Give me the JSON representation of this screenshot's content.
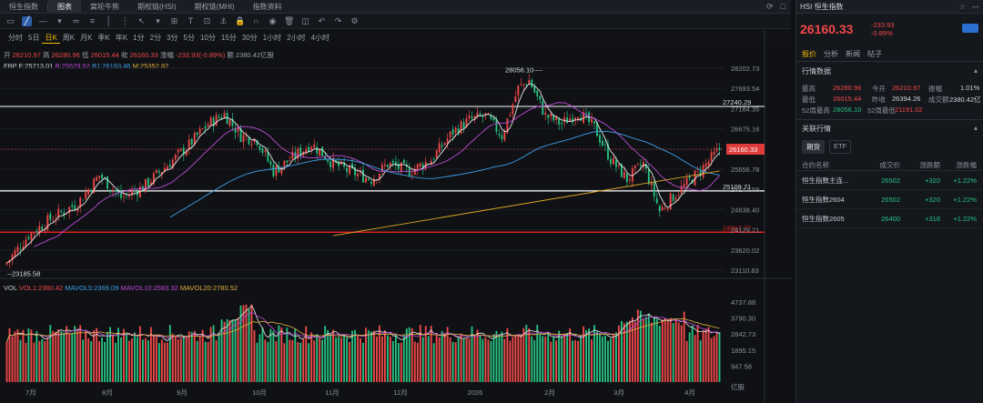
{
  "top_tabs": [
    {
      "label": "恒生指数",
      "active": false
    },
    {
      "label": "图表",
      "active": true
    },
    {
      "label": "窝轮牛熊",
      "active": false
    },
    {
      "label": "期权链(HSI)",
      "active": false
    },
    {
      "label": "期权链(MHI)",
      "active": false
    },
    {
      "label": "指数资料",
      "active": false
    }
  ],
  "periods": [
    {
      "label": "分时",
      "active": false
    },
    {
      "label": "5日",
      "active": false
    },
    {
      "label": "日K",
      "active": true
    },
    {
      "label": "周K",
      "active": false
    },
    {
      "label": "月K",
      "active": false
    },
    {
      "label": "季K",
      "active": false
    },
    {
      "label": "年K",
      "active": false
    },
    {
      "label": "1分",
      "active": false
    },
    {
      "label": "2分",
      "active": false
    },
    {
      "label": "3分",
      "active": false
    },
    {
      "label": "5分",
      "active": false
    },
    {
      "label": "10分",
      "active": false
    },
    {
      "label": "15分",
      "active": false
    },
    {
      "label": "30分",
      "active": false
    },
    {
      "label": "1小时",
      "active": false
    },
    {
      "label": "2小时",
      "active": false
    },
    {
      "label": "4小时",
      "active": false
    }
  ],
  "ohlc": {
    "open_label": "开",
    "open": "26210.97",
    "high_label": "高",
    "high": "26280.96",
    "low_label": "低",
    "low": "26015.44",
    "close_label": "收",
    "close": "26160.33",
    "chg_label": "涨幅",
    "chg": "-233.93(-0.89%)",
    "amount_label": "额",
    "amount": "2380.42亿股"
  },
  "bands": {
    "label": "FBP",
    "f": "F:25713.01",
    "b": "B:25529.52",
    "b1": "B1:26163.46",
    "m": "M:25352.82"
  },
  "price_axis": [
    "28202.73",
    "27693.54",
    "27184.35",
    "26675.16",
    "26160.33",
    "25656.78",
    "25147.59",
    "24638.40",
    "24129.21",
    "23620.02",
    "23110.83"
  ],
  "annotations": {
    "high_mark": "28056.10",
    "low_mark": "23185.58",
    "line_27240": "27240.29",
    "line_25109": "25109.71",
    "line_24067": "24067.77",
    "current": "26160.33"
  },
  "vol_info": {
    "label": "VOL",
    "vol1": "VOL1:2380.42",
    "mavol5": "MAVOL5:2369.09",
    "mavol10": "MAVOL10:2583.32",
    "mavol20": "MAVOL20:2780.52"
  },
  "vol_axis": [
    "4737.88",
    "3790.30",
    "2842.73",
    "1895.15",
    "947.58"
  ],
  "vol_unit": "亿股",
  "months": [
    "7月",
    "8月",
    "9月",
    "10月",
    "11月",
    "12月",
    "2026",
    "2月",
    "3月",
    "4月"
  ],
  "panel": {
    "title": "HSI 恒生指数",
    "price": "26160.33",
    "change": "-233.93",
    "change_pct": "-0.89%",
    "tabs": [
      {
        "label": "报价",
        "active": true
      },
      {
        "label": "分析",
        "active": false
      },
      {
        "label": "新闻",
        "active": false
      },
      {
        "label": "帖子",
        "active": false
      }
    ],
    "market_title": "行情数据",
    "stats": {
      "high_l": "最高",
      "high": "26280.96",
      "open_l": "今开",
      "open": "26210.97",
      "amp_l": "振幅",
      "amp": "1.01%",
      "low_l": "最低",
      "low": "26015.44",
      "prev_l": "昨收",
      "prev": "26394.26",
      "amount_l": "成交额",
      "amount": "2380.42亿",
      "w52h_l": "52周最高",
      "w52h": "28056.10",
      "w52l_l": "52周最低",
      "w52l": "21191.02"
    },
    "related_title": "关联行情",
    "fut_tabs": [
      {
        "label": "期货",
        "active": true
      },
      {
        "label": "ETF",
        "active": false
      }
    ],
    "table_head": [
      "合约名称",
      "成交价",
      "涨跌额",
      "涨跌幅"
    ],
    "rows": [
      {
        "name": "恒生指数主连...",
        "price": "26502",
        "chg": "+320",
        "pct": "+1.22%"
      },
      {
        "name": "恒生指数2604",
        "price": "26502",
        "chg": "+320",
        "pct": "+1.22%"
      },
      {
        "name": "恒生指数2605",
        "price": "26400",
        "chg": "+318",
        "pct": "+1.22%"
      }
    ]
  },
  "colors": {
    "up": "#f04848",
    "down": "#26c281",
    "accent": "#f0b90b"
  }
}
